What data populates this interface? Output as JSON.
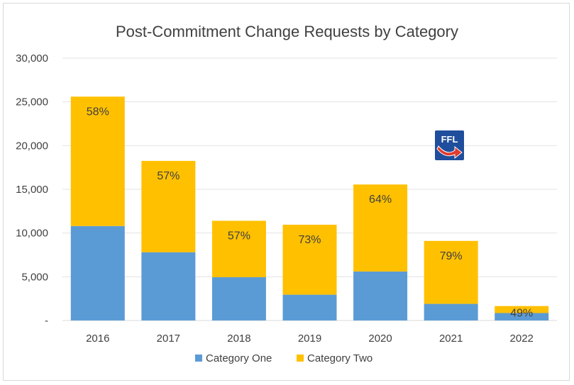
{
  "chart_data": {
    "type": "bar",
    "stacked": true,
    "title": "Post-Commitment Change Requests by Category",
    "categories": [
      "2016",
      "2017",
      "2018",
      "2019",
      "2020",
      "2021",
      "2022"
    ],
    "series": [
      {
        "name": "Category One",
        "color": "#5b9bd5",
        "values": [
          10800,
          7800,
          4950,
          2950,
          5600,
          1900,
          850
        ]
      },
      {
        "name": "Category Two",
        "color": "#ffc000",
        "values": [
          14800,
          10450,
          6450,
          8000,
          9950,
          7200,
          800
        ]
      }
    ],
    "data_labels": [
      "58%",
      "57%",
      "57%",
      "73%",
      "64%",
      "79%",
      "49%"
    ],
    "ylim": [
      0,
      30000
    ],
    "yticks": [
      0,
      5000,
      10000,
      15000,
      20000,
      25000,
      30000
    ],
    "ytick_labels": [
      "-",
      "5,000",
      "10,000",
      "15,000",
      "20,000",
      "25,000",
      "30,000"
    ],
    "grid": true,
    "legend_position": "bottom"
  },
  "logo": {
    "text": "FFL",
    "icon": "ffl-logo-icon",
    "bg_color": "#1f4e9c",
    "arrow_color": "#e03c31"
  }
}
